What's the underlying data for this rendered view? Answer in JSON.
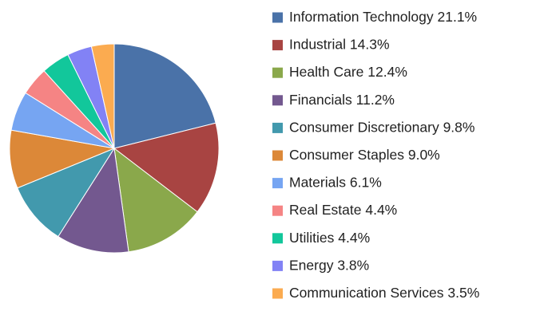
{
  "chart_data": {
    "type": "pie",
    "categories": [
      "Information Technology",
      "Industrial",
      "Health Care",
      "Financials",
      "Consumer Discretionary",
      "Consumer Staples",
      "Materials",
      "Real Estate",
      "Utilities",
      "Energy",
      "Communication Services"
    ],
    "values": [
      21.1,
      14.3,
      12.4,
      11.2,
      9.8,
      9.0,
      6.1,
      4.4,
      4.4,
      3.8,
      3.5
    ],
    "value_labels": [
      "21.1%",
      "14.3%",
      "12.4%",
      "11.2%",
      "9.8%",
      "9.0%",
      "6.1%",
      "4.4%",
      "4.4%",
      "3.8%",
      "3.5%"
    ],
    "colors": [
      "#4a72a8",
      "#a84442",
      "#8aa84b",
      "#73588f",
      "#4299ad",
      "#dc8838",
      "#76a5f2",
      "#f58484",
      "#12c79b",
      "#8282f5",
      "#fbab50"
    ],
    "legend": "right"
  }
}
